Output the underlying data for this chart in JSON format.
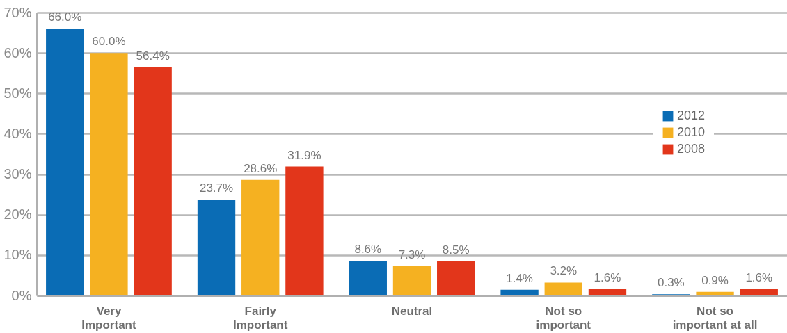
{
  "chart_data": {
    "type": "bar",
    "categories": [
      "Very Important",
      "Fairly Important",
      "Neutral",
      "Not so important",
      "Not so important at all"
    ],
    "series": [
      {
        "name": "2012",
        "color": "#0a6cb5",
        "values": [
          66.0,
          23.7,
          8.6,
          1.4,
          0.3
        ],
        "value_labels": [
          "66.0%",
          "23.7%",
          "8.6%",
          "1.4%",
          "0.3%"
        ]
      },
      {
        "name": "2010",
        "color": "#f5b121",
        "values": [
          60.0,
          28.6,
          7.3,
          3.2,
          0.9
        ],
        "value_labels": [
          "60.0%",
          "28.6%",
          "7.3%",
          "3.2%",
          "0.9%"
        ]
      },
      {
        "name": "2008",
        "color": "#e2361b",
        "values": [
          56.4,
          31.9,
          8.5,
          1.6,
          1.6
        ],
        "value_labels": [
          "56.4%",
          "31.9%",
          "8.5%",
          "1.6%",
          "1.6%"
        ]
      }
    ],
    "ylim": [
      0,
      70
    ],
    "yticks": [
      {
        "value": 0,
        "label": "0%"
      },
      {
        "value": 10,
        "label": "10%"
      },
      {
        "value": 20,
        "label": "20%"
      },
      {
        "value": 30,
        "label": "30%"
      },
      {
        "value": 40,
        "label": "40%"
      },
      {
        "value": 50,
        "label": "50%"
      },
      {
        "value": 60,
        "label": "60%"
      },
      {
        "value": 70,
        "label": "70%"
      }
    ],
    "grid": "y",
    "legend": "right"
  }
}
